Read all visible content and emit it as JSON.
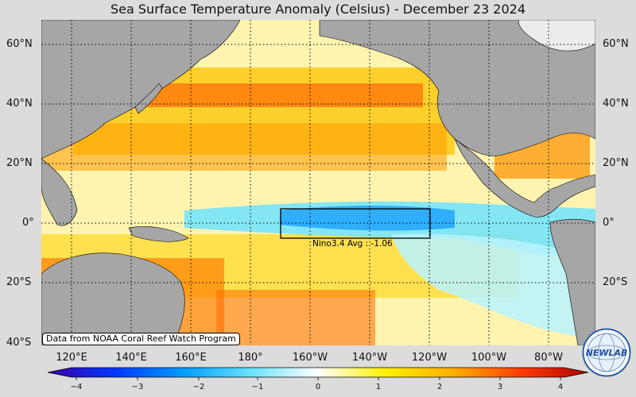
{
  "title": "Sea Surface Temperature Anomaly (Celsius) - December 23 2024",
  "lat_labels": [
    "60°N",
    "40°N",
    "20°N",
    "0°",
    "20°S",
    "40°S"
  ],
  "lon_labels": [
    "120°E",
    "140°E",
    "160°E",
    "180°",
    "160°W",
    "140°W",
    "120°W",
    "100°W",
    "80°W"
  ],
  "attribution": "Data from NOAA Coral Reef Watch Program",
  "nino_box": {
    "label": "Nino3.4 Avg : -1.06"
  },
  "colorbar": {
    "ticks": [
      "−4",
      "−3",
      "−2",
      "−1",
      "0",
      "1",
      "2",
      "3",
      "4"
    ],
    "colors": [
      "#3a00a8",
      "#0038ff",
      "#009cff",
      "#67e2ff",
      "#ffffff",
      "#fff000",
      "#ffae00",
      "#ff3d00",
      "#b00000"
    ]
  },
  "logo_text": "NEWLAB",
  "colors": {
    "land": "#a6a6a6",
    "background": "#dcdcdc",
    "warm": "#ff9a00",
    "cool": "#00c8ff"
  }
}
